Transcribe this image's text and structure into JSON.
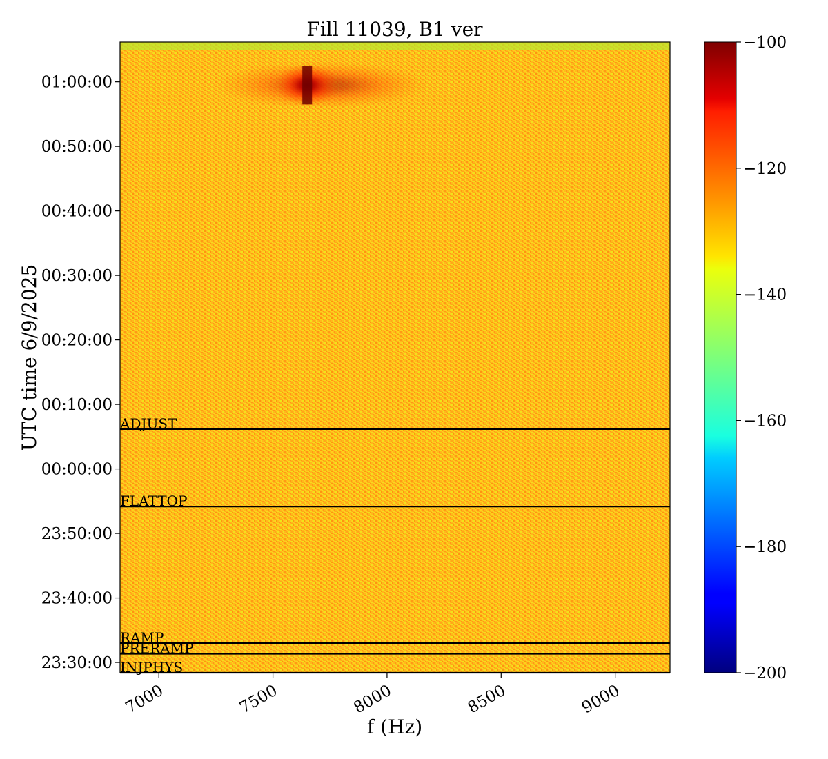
{
  "chart_data": {
    "type": "heatmap",
    "title": "Fill 11039, B1 ver",
    "xlabel": "f (Hz)",
    "ylabel": "UTC time 6/9/2025",
    "xlim": [
      6830,
      9240
    ],
    "xticks": [
      7000,
      7500,
      8000,
      8500,
      9000
    ],
    "xtick_labels": [
      "7000",
      "7500",
      "8000",
      "8500",
      "9000"
    ],
    "ylim": [
      "23:28:24",
      "01:06:10"
    ],
    "yticks": [
      "23:30:00",
      "23:40:00",
      "23:50:00",
      "00:00:00",
      "00:10:00",
      "00:20:00",
      "00:30:00",
      "00:40:00",
      "00:50:00",
      "01:00:00"
    ],
    "colormap": "jet",
    "colorbar": {
      "range": [
        -200,
        -100
      ],
      "ticks": [
        -100,
        -120,
        -140,
        -160,
        -180,
        -200
      ],
      "tick_labels": [
        "−100",
        "−120",
        "−140",
        "−160",
        "−180",
        "−200"
      ]
    },
    "background_level": -128,
    "hotspot": {
      "f_center": 7650,
      "f_range": [
        7300,
        8250
      ],
      "time_range": [
        "00:56:30",
        "01:02:30"
      ],
      "peak_level": -103
    },
    "phase_markers": [
      {
        "label": "INJPHYS",
        "time": "23:28:24"
      },
      {
        "label": "PRERAMP",
        "time": "23:31:20"
      },
      {
        "label": "RAMP",
        "time": "23:33:00"
      },
      {
        "label": "FLATTOP",
        "time": "23:54:10"
      },
      {
        "label": "ADJUST",
        "time": "00:06:10"
      }
    ],
    "colors": {
      "heat_low": "#f7e21a",
      "heat_mid": "#ffaa10",
      "heat_high": "#9a0000",
      "marker_line": "#000000"
    }
  }
}
